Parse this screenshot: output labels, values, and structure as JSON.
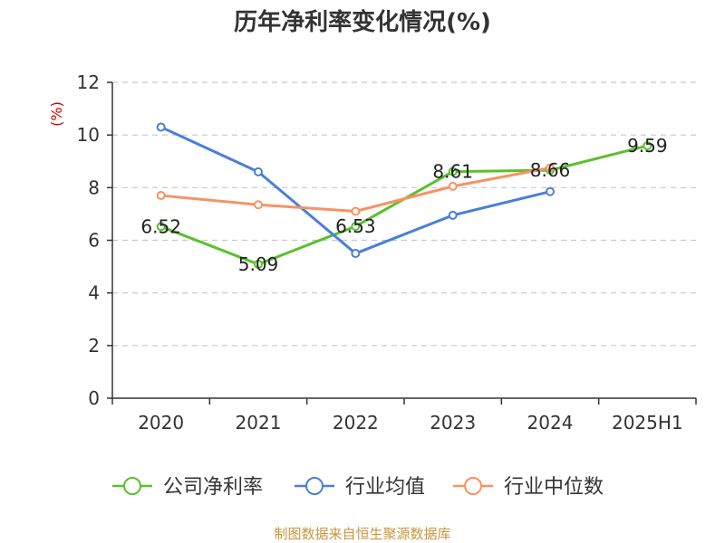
{
  "chart_data": {
    "type": "line",
    "title": "历年净利率变化情况(%)",
    "ylabel": "(%)",
    "ylim": [
      0,
      12
    ],
    "yticks": [
      0,
      2,
      4,
      6,
      8,
      10,
      12
    ],
    "grid": true,
    "legend_position": "bottom",
    "categories": [
      "2020",
      "2021",
      "2022",
      "2023",
      "2024",
      "2025H1"
    ],
    "series": [
      {
        "name": "公司净利率",
        "color": "#5ac02e",
        "values": [
          6.52,
          5.09,
          6.53,
          8.61,
          8.66,
          9.59
        ],
        "labels": [
          "6.52",
          "5.09",
          "6.53",
          "8.61",
          "8.66",
          "9.59"
        ]
      },
      {
        "name": "行业均值",
        "color": "#4a7fd8",
        "values": [
          10.3,
          8.6,
          5.5,
          6.95,
          7.85,
          null
        ]
      },
      {
        "name": "行业中位数",
        "color": "#f59362",
        "values": [
          7.7,
          7.35,
          7.1,
          8.05,
          8.75,
          null
        ]
      }
    ],
    "source": "制图数据来自恒生聚源数据库"
  }
}
